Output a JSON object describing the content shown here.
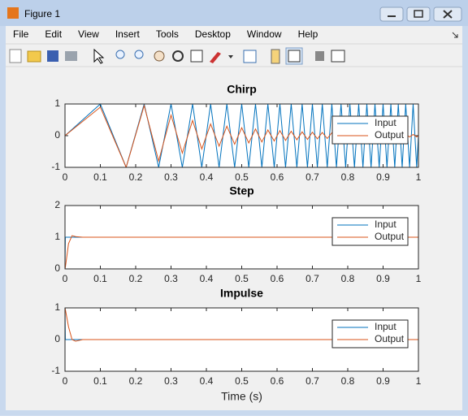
{
  "window": {
    "title": "Figure 1",
    "menu": [
      "File",
      "Edit",
      "View",
      "Insert",
      "Tools",
      "Desktop",
      "Window",
      "Help"
    ]
  },
  "chart_data": [
    {
      "type": "line",
      "title": "Chirp",
      "x": [
        0,
        0.1,
        0.173,
        0.224,
        0.265,
        0.3,
        0.332,
        0.361,
        0.387,
        0.412,
        0.436,
        0.458,
        0.48,
        0.5,
        0.52,
        0.539,
        0.557,
        0.574,
        0.592,
        0.608,
        0.624,
        0.64,
        0.656,
        0.671,
        0.686,
        0.7,
        0.714,
        0.728,
        0.742,
        0.755,
        0.768,
        0.781,
        0.794,
        0.806,
        0.819,
        0.831,
        0.843,
        0.854,
        0.866,
        0.877,
        0.889,
        0.9,
        0.911,
        0.922,
        0.933,
        0.943,
        0.954,
        0.964,
        0.975,
        0.985,
        0.995,
        1
      ],
      "series": [
        {
          "name": "Input",
          "color": "#0072bd",
          "values": [
            0,
            1,
            -1,
            1,
            -1,
            1,
            -1,
            1,
            -1,
            1,
            -1,
            1,
            -1,
            1,
            -1,
            1,
            -1,
            1,
            -1,
            1,
            -1,
            1,
            -1,
            1,
            -1,
            1,
            -1,
            1,
            -1,
            1,
            -1,
            1,
            -1,
            1,
            -1,
            1,
            -1,
            1,
            -1,
            1,
            -1,
            1,
            -1,
            1,
            -1,
            1,
            -1,
            1,
            -1,
            1,
            -1,
            0
          ]
        },
        {
          "name": "Output",
          "color": "#d95319",
          "values": [
            0,
            0.9,
            -1,
            0.95,
            -0.8,
            0.65,
            -0.55,
            0.48,
            -0.42,
            0.37,
            -0.33,
            0.3,
            -0.27,
            0.25,
            -0.23,
            0.21,
            -0.2,
            0.18,
            -0.17,
            0.16,
            -0.15,
            0.14,
            -0.13,
            0.12,
            -0.12,
            0.11,
            -0.1,
            0.1,
            -0.09,
            0.09,
            -0.08,
            0.08,
            -0.08,
            0.07,
            -0.07,
            0.07,
            -0.06,
            0.06,
            -0.06,
            0.06,
            -0.05,
            0.05,
            -0.05,
            0.05,
            -0.05,
            0.04,
            -0.04,
            0.04,
            -0.04,
            0.04,
            -0.04,
            0
          ]
        }
      ],
      "xlim": [
        0,
        1
      ],
      "xticks": [
        0,
        0.1,
        0.2,
        0.3,
        0.4,
        0.5,
        0.6,
        0.7,
        0.8,
        0.9,
        1
      ],
      "ylim": [
        -1,
        1
      ],
      "yticks": [
        -1,
        0,
        1
      ],
      "legend": "upper right"
    },
    {
      "type": "line",
      "title": "Step",
      "x": [
        0,
        0.001,
        0.01,
        0.02,
        0.03,
        0.05,
        1
      ],
      "series": [
        {
          "name": "Input",
          "color": "#0072bd",
          "values": [
            0,
            1,
            1,
            1,
            1,
            1,
            1
          ]
        },
        {
          "name": "Output",
          "color": "#d95319",
          "values": [
            0,
            0.05,
            0.8,
            1.05,
            1.02,
            1,
            1
          ]
        }
      ],
      "xlim": [
        0,
        1
      ],
      "xticks": [
        0,
        0.1,
        0.2,
        0.3,
        0.4,
        0.5,
        0.6,
        0.7,
        0.8,
        0.9,
        1
      ],
      "ylim": [
        0,
        2
      ],
      "yticks": [
        0,
        1,
        2
      ],
      "legend": "upper right"
    },
    {
      "type": "line",
      "title": "Impulse",
      "xlabel": "Time (s)",
      "x": [
        0,
        0.001,
        0.01,
        0.02,
        0.03,
        0.05,
        1
      ],
      "series": [
        {
          "name": "Input",
          "color": "#0072bd",
          "values": [
            1,
            0,
            0,
            0,
            0,
            0,
            0
          ]
        },
        {
          "name": "Output",
          "color": "#d95319",
          "values": [
            1,
            0.95,
            0.4,
            0,
            -0.05,
            0,
            0
          ]
        }
      ],
      "xlim": [
        0,
        1
      ],
      "xticks": [
        0,
        0.1,
        0.2,
        0.3,
        0.4,
        0.5,
        0.6,
        0.7,
        0.8,
        0.9,
        1
      ],
      "ylim": [
        -1,
        1
      ],
      "yticks": [
        -1,
        0,
        1
      ],
      "legend": "upper right"
    }
  ]
}
